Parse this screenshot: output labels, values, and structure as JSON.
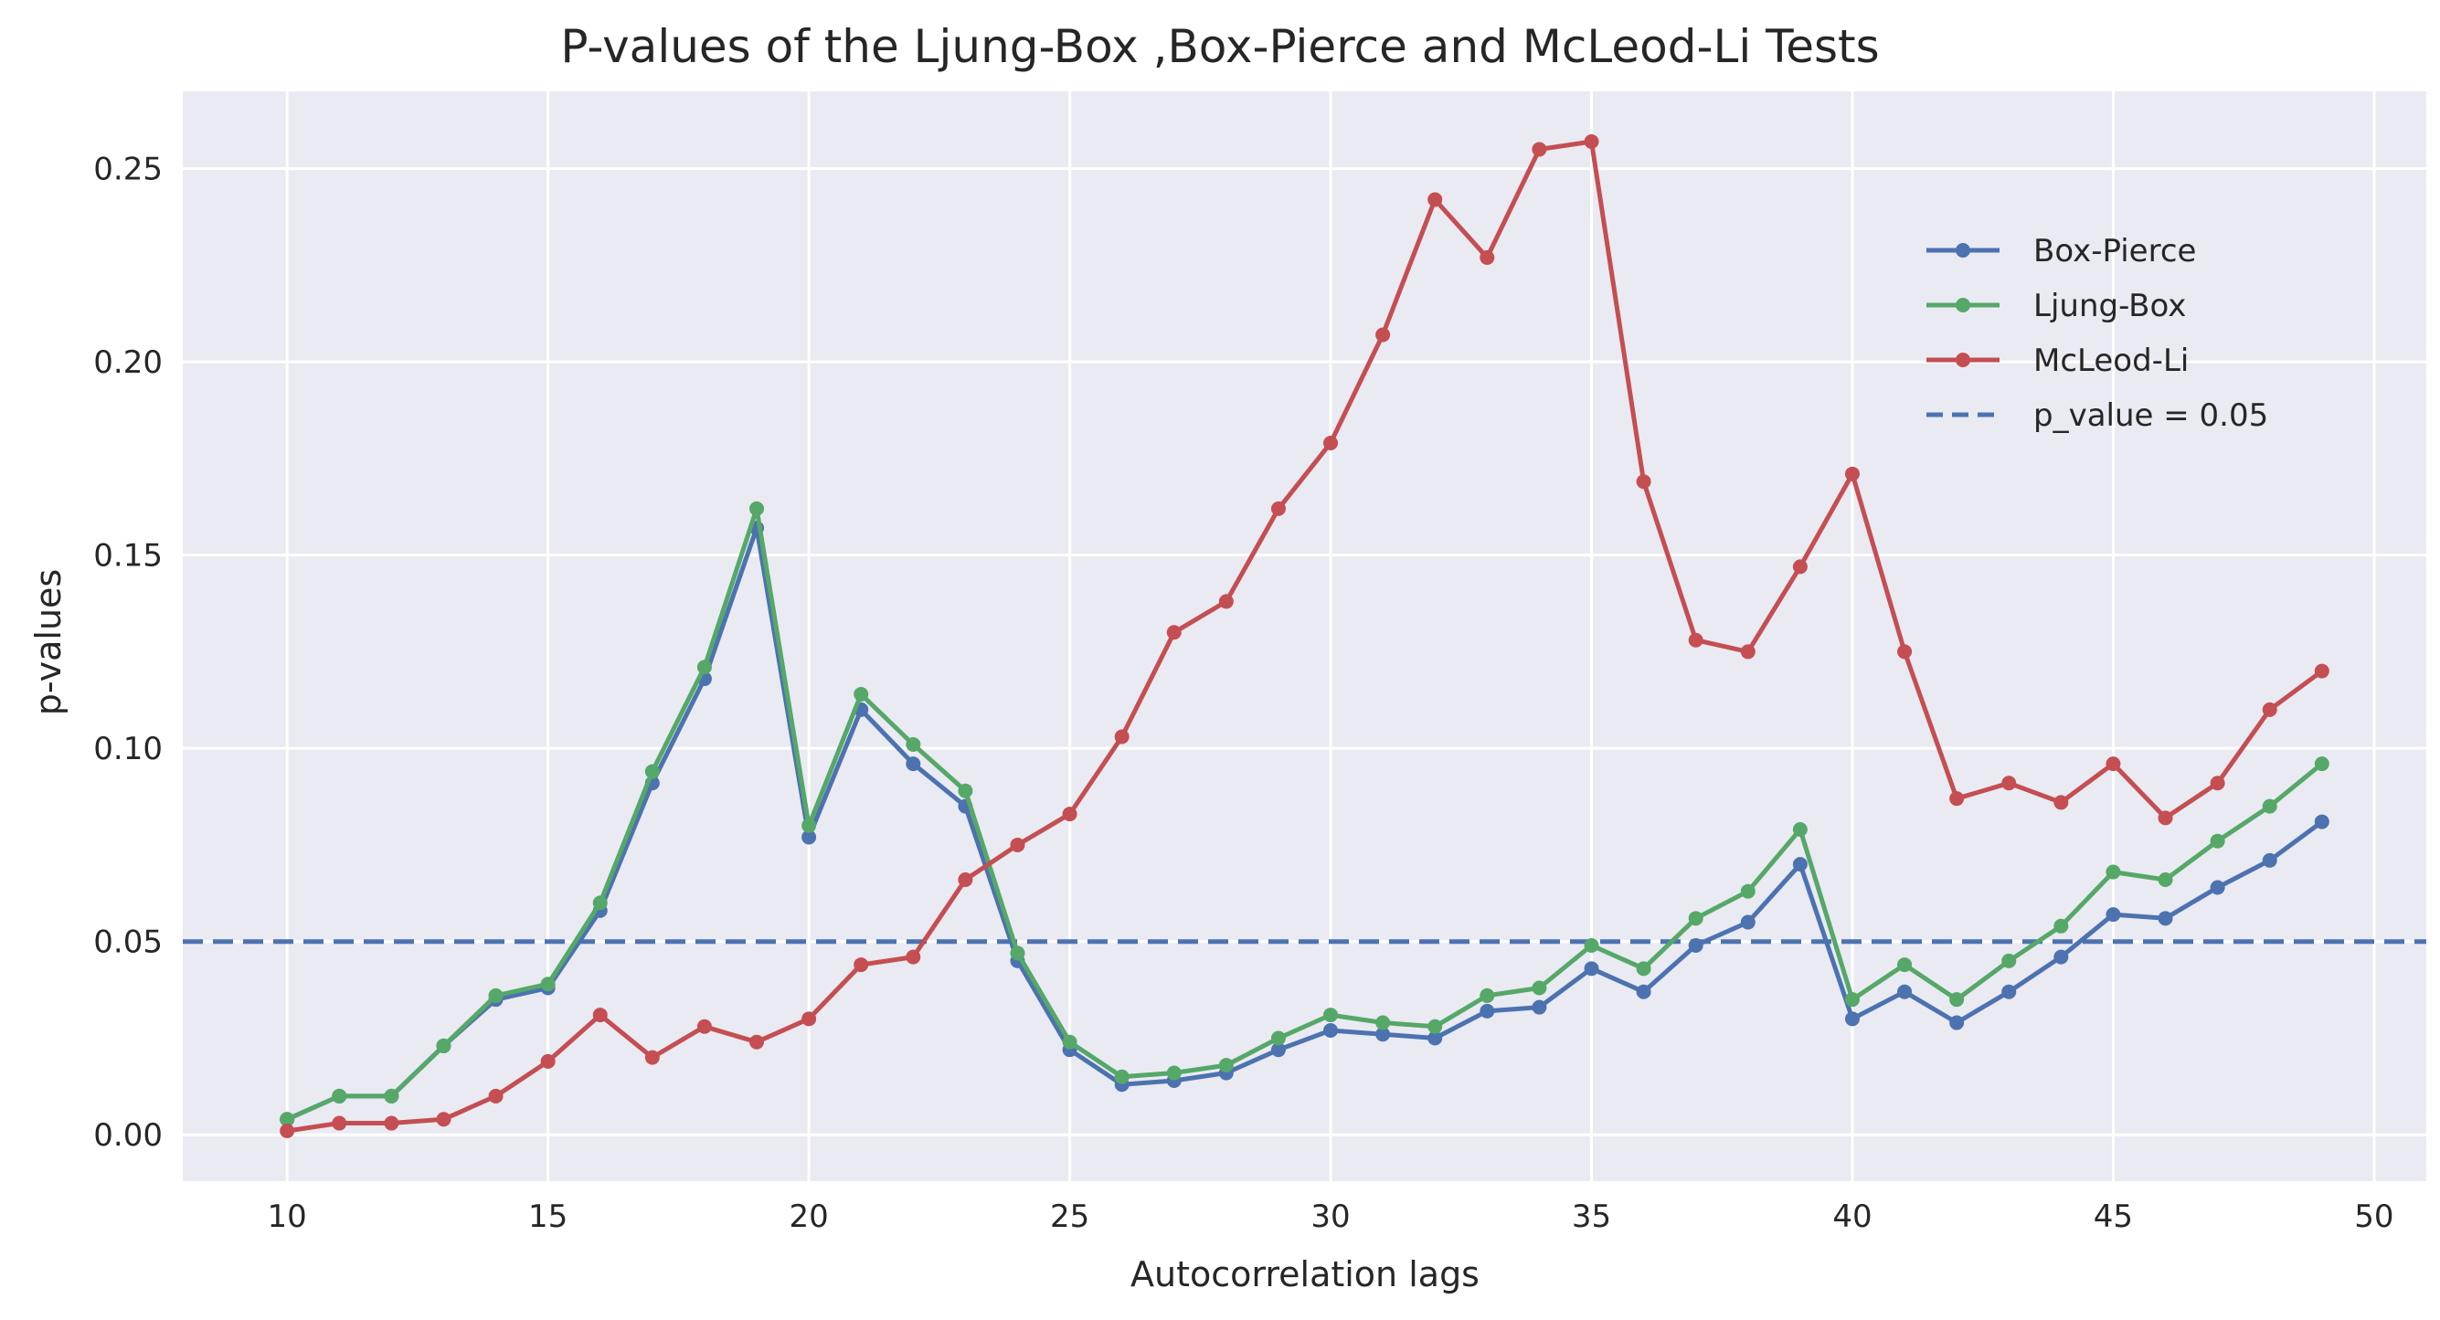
{
  "chart_data": {
    "type": "line",
    "title": "P-values of the Ljung-Box ,Box-Pierce and McLeod-Li Tests",
    "xlabel": "Autocorrelation lags",
    "ylabel": "p-values",
    "xlim": [
      8,
      51
    ],
    "ylim": [
      -0.012,
      0.27
    ],
    "xticks": [
      10,
      15,
      20,
      25,
      30,
      35,
      40,
      45,
      50
    ],
    "yticks": [
      0.0,
      0.05,
      0.1,
      0.15,
      0.2,
      0.25
    ],
    "ytick_labels": [
      "0.00",
      "0.05",
      "0.10",
      "0.15",
      "0.20",
      "0.25"
    ],
    "grid": true,
    "legend_position": "upper-right",
    "x": [
      10,
      11,
      12,
      13,
      14,
      15,
      16,
      17,
      18,
      19,
      20,
      21,
      22,
      23,
      24,
      25,
      26,
      27,
      28,
      29,
      30,
      31,
      32,
      33,
      34,
      35,
      36,
      37,
      38,
      39,
      40,
      41,
      42,
      43,
      44,
      45,
      46,
      47,
      48,
      49
    ],
    "series": [
      {
        "name": "Box-Pierce",
        "color": "#4c72b0",
        "values": [
          0.004,
          0.01,
          0.01,
          0.023,
          0.035,
          0.038,
          0.058,
          0.091,
          0.118,
          0.157,
          0.077,
          0.11,
          0.096,
          0.085,
          0.045,
          0.022,
          0.013,
          0.014,
          0.016,
          0.022,
          0.027,
          0.026,
          0.025,
          0.032,
          0.033,
          0.043,
          0.037,
          0.049,
          0.055,
          0.07,
          0.03,
          0.037,
          0.029,
          0.037,
          0.046,
          0.057,
          0.056,
          0.064,
          0.071,
          0.081
        ]
      },
      {
        "name": "Ljung-Box",
        "color": "#55a868",
        "values": [
          0.004,
          0.01,
          0.01,
          0.023,
          0.036,
          0.039,
          0.06,
          0.094,
          0.121,
          0.162,
          0.08,
          0.114,
          0.101,
          0.089,
          0.047,
          0.024,
          0.015,
          0.016,
          0.018,
          0.025,
          0.031,
          0.029,
          0.028,
          0.036,
          0.038,
          0.049,
          0.043,
          0.056,
          0.063,
          0.079,
          0.035,
          0.044,
          0.035,
          0.045,
          0.054,
          0.068,
          0.066,
          0.076,
          0.085,
          0.096
        ]
      },
      {
        "name": "McLeod-Li",
        "color": "#c44e52",
        "values": [
          0.001,
          0.003,
          0.003,
          0.004,
          0.01,
          0.019,
          0.031,
          0.02,
          0.028,
          0.024,
          0.03,
          0.044,
          0.046,
          0.066,
          0.075,
          0.083,
          0.103,
          0.13,
          0.138,
          0.162,
          0.179,
          0.207,
          0.242,
          0.227,
          0.255,
          0.257,
          0.169,
          0.128,
          0.125,
          0.147,
          0.171,
          0.125,
          0.087,
          0.091,
          0.086,
          0.096,
          0.082,
          0.091,
          0.11,
          0.12
        ]
      }
    ],
    "reference_line": {
      "name": "p_value = 0.05",
      "value": 0.05,
      "color": "#4c72b0",
      "style": "dashed"
    }
  }
}
